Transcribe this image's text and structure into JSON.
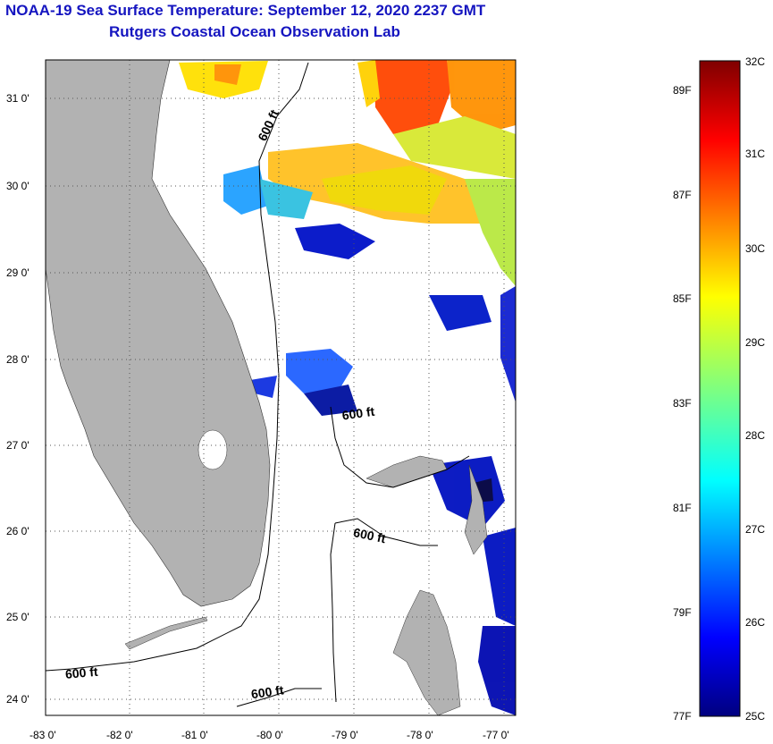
{
  "title": "NOAA-19 Sea Surface Temperature:  September 12, 2020 2237 GMT",
  "subtitle": "Rutgers Coastal Ocean Observation Lab",
  "axes": {
    "x_ticks": [
      "-83 0'",
      "-82 0'",
      "-81 0'",
      "-80 0'",
      "-79 0'",
      "-78 0'",
      "-77 0'"
    ],
    "y_ticks": [
      "31 0'",
      "30 0'",
      "29 0'",
      "28 0'",
      "27 0'",
      "26 0'",
      "25 0'",
      "24 0'"
    ],
    "lon_range": [
      -83.0,
      -76.8
    ],
    "lat_range": [
      23.8,
      31.4
    ]
  },
  "contour_labels": [
    "600 ft",
    "600 ft",
    "600 ft",
    "600 ft",
    "600 ft"
  ],
  "colorbar": {
    "celsius_labels": [
      "32C",
      "31C",
      "30C",
      "29C",
      "28C",
      "27C",
      "26C",
      "25C"
    ],
    "fahrenheit_labels": [
      "89F",
      "87F",
      "85F",
      "83F",
      "81F",
      "79F",
      "77F"
    ],
    "range_c": [
      25,
      32
    ]
  },
  "colors": {
    "title": "#1515c0",
    "land": "#b2b2b2",
    "ocean_nodata": "#ffffff"
  }
}
